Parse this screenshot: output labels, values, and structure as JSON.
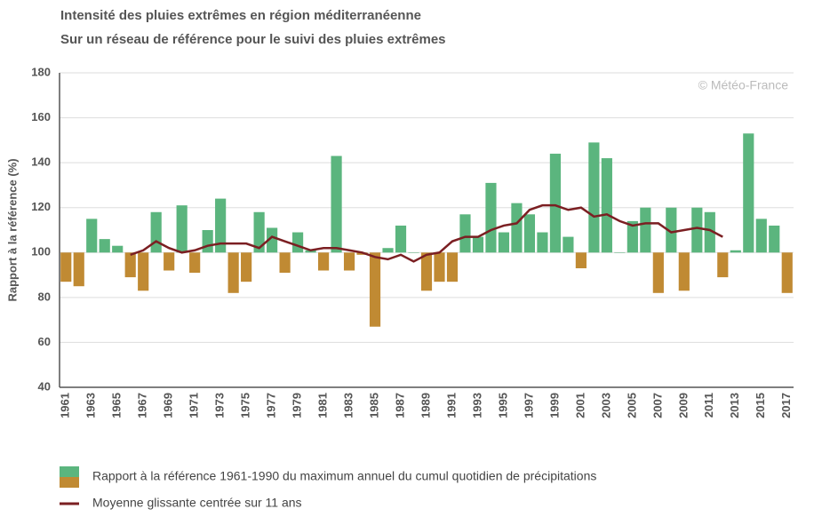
{
  "chart_data": {
    "type": "combo",
    "title": "Intensité des pluies extrêmes en région méditerranéenne",
    "subtitle": "Sur un réseau de référence pour le suivi des pluies extrêmes",
    "y_label": "Rapport à la référence (%)",
    "annotation": "© Météo-France",
    "categories": [
      "1961",
      null,
      "1963",
      null,
      "1965",
      null,
      "1967",
      null,
      "1969",
      null,
      "1971",
      null,
      "1973",
      null,
      "1975",
      null,
      "1977",
      null,
      "1979",
      null,
      "1981",
      null,
      "1983",
      null,
      "1985",
      null,
      "1987",
      null,
      "1989",
      null,
      "1991",
      null,
      "1993",
      null,
      "1995",
      null,
      "1997",
      null,
      "1999",
      null,
      "2001",
      null,
      "2003",
      null,
      "2005",
      null,
      "2007",
      null,
      "2009",
      null,
      "2011",
      null,
      "2013",
      null,
      "2015",
      null,
      "2017"
    ],
    "series": [
      {
        "name": "Rapport à la référence 1961-1990 du maximum annuel du cumul quotidien de précipitations",
        "type": "bar",
        "color_above": "#5bb57e",
        "color_below": "#c08a33",
        "baseline": 100,
        "values": [
          87,
          85,
          115,
          106,
          103,
          89,
          83,
          118,
          92,
          121,
          91,
          110,
          124,
          82,
          87,
          118,
          111,
          91,
          109,
          101,
          92,
          143,
          92,
          99,
          67,
          102,
          112,
          100,
          83,
          87,
          87,
          117,
          107,
          131,
          109,
          122,
          117,
          109,
          144,
          107,
          93,
          149,
          142,
          100,
          114,
          120,
          82,
          120,
          83,
          120,
          118,
          89,
          101,
          153,
          115,
          112,
          82
        ]
      },
      {
        "name": "Moyenne glissante centrée sur 11 ans",
        "type": "line",
        "color": "#7b1f22",
        "values": [
          null,
          null,
          null,
          null,
          null,
          99,
          101,
          105,
          102,
          100,
          101,
          103,
          104,
          104,
          104,
          102,
          107,
          105,
          103,
          101,
          102,
          102,
          101,
          100,
          98,
          97,
          99,
          96,
          99,
          100,
          105,
          107,
          107,
          110,
          112,
          113,
          119,
          121,
          121,
          119,
          120,
          116,
          117,
          114,
          112,
          113,
          113,
          109,
          110,
          111,
          110,
          107,
          null,
          null,
          null,
          null,
          null
        ]
      }
    ],
    "ylim": [
      40,
      180
    ],
    "yticks": [
      40,
      60,
      80,
      100,
      120,
      140,
      160,
      180
    ],
    "grid": true
  }
}
